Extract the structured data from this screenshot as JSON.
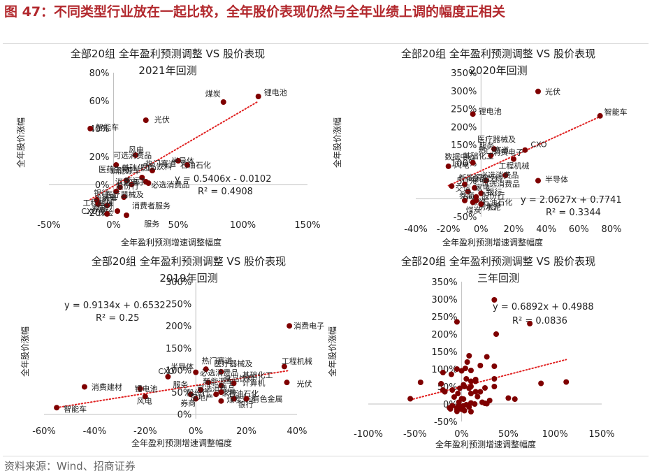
{
  "header": {
    "figure_title": "图 47：不同类型行业放在一起比较，全年股价表现仍然与全年业绩上调的幅度正相关"
  },
  "footer": {
    "source": "资料来源：Wind、招商证券"
  },
  "colors": {
    "point": "#7f0000",
    "trendline": "#e02020",
    "title": "#b2282d",
    "text": "#222222"
  },
  "chart_data": [
    {
      "type": "scatter",
      "title": "全部20组 全年盈利预测调整 VS 股价表现",
      "subtitle": "2021年回测",
      "xlabel": "全年盈利预测增速调整幅度",
      "ylabel": "全年股价涨幅",
      "xlim": [
        -0.5,
        1.5
      ],
      "ylim": [
        -0.2,
        0.8
      ],
      "xticks": [
        -0.5,
        0,
        0.5,
        1,
        1.5
      ],
      "xtick_labels": [
        "-50%",
        "0%",
        "50%",
        "100%",
        "150%"
      ],
      "yticks": [
        -0.2,
        0,
        0.2,
        0.4,
        0.6,
        0.8
      ],
      "ytick_labels": [
        "-20%",
        "0%",
        "20%",
        "40%",
        "60%",
        "80%"
      ],
      "grid": false,
      "trendline": {
        "slope": 0.5406,
        "intercept": -0.0102,
        "style": "dotted"
      },
      "equation": "y = 0.5406x - 0.0102",
      "r2": "R² = 0.4908",
      "points": [
        {
          "x": 1.12,
          "y": 0.63,
          "label": "锂电池"
        },
        {
          "x": 0.85,
          "y": 0.59,
          "label": "煤炭"
        },
        {
          "x": 0.25,
          "y": 0.46,
          "label": "光伏"
        },
        {
          "x": -0.18,
          "y": 0.4,
          "label": "智能车"
        },
        {
          "x": 0.17,
          "y": 0.21,
          "label": "风电"
        },
        {
          "x": 0.5,
          "y": 0.17,
          "label": "半导体"
        },
        {
          "x": 0.57,
          "y": 0.14,
          "label": "石油石化"
        },
        {
          "x": 0.02,
          "y": 0.14,
          "label": "基础化工"
        },
        {
          "x": 0.3,
          "y": 0.1,
          "label": "热门赛道"
        },
        {
          "x": 0.22,
          "y": 0.05,
          "label": "新能源车"
        },
        {
          "x": 0.1,
          "y": 0.03,
          "label": "医药生物"
        },
        {
          "x": 0.25,
          "y": 0.02,
          "label": "消费电子"
        },
        {
          "x": 0.14,
          "y": 0.0,
          "label": "交运"
        },
        {
          "x": 0.27,
          "y": 0.01,
          "label": "必选消费品"
        },
        {
          "x": 0.05,
          "y": -0.02,
          "label": "股份行"
        },
        {
          "x": 0.02,
          "y": -0.05,
          "label": "银行"
        },
        {
          "x": 0.08,
          "y": -0.09,
          "label": "房地产"
        },
        {
          "x": -0.13,
          "y": -0.11,
          "label": "工程机械"
        },
        {
          "x": -0.12,
          "y": -0.14,
          "label": "CXO"
        },
        {
          "x": -0.05,
          "y": -0.15,
          "label": "建材"
        },
        {
          "x": 0.03,
          "y": -0.19,
          "label": "保险"
        },
        {
          "x": 0.1,
          "y": -0.22,
          "label": "消费者服务"
        },
        {
          "x": -0.05,
          "y": -0.21,
          "label": "券商"
        }
      ],
      "extra_labels": [
        {
          "text": "可选消费品"
        },
        {
          "text": "食品饮料"
        },
        {
          "text": "家电"
        },
        {
          "text": "医疗器械及"
        },
        {
          "text": "服务"
        }
      ]
    },
    {
      "type": "scatter",
      "title": "全部20组 全年盈利预测调整 VS 股价表现",
      "subtitle": "2020年回测",
      "xlabel": "全年盈利预测增速调整幅度",
      "ylabel": "全年股价涨幅",
      "xlim": [
        -0.4,
        0.8
      ],
      "ylim": [
        -0.5,
        3.5
      ],
      "xticks": [
        -0.4,
        -0.2,
        0,
        0.2,
        0.4,
        0.6,
        0.8
      ],
      "xtick_labels": [
        "-40%",
        "-20%",
        "0%",
        "20%",
        "40%",
        "60%",
        "80%"
      ],
      "yticks": [
        -0.5,
        0,
        0.5,
        1,
        1.5,
        2,
        2.5,
        3,
        3.5
      ],
      "ytick_labels": [
        "-50%",
        "0%",
        "50%",
        "100%",
        "150%",
        "200%",
        "250%",
        "300%",
        "350%"
      ],
      "grid": false,
      "trendline": {
        "slope": 2.0627,
        "intercept": 0.7741,
        "style": "dotted"
      },
      "equation": "y = 2.0627x + 0.7741",
      "r2": "R² = 0.3344",
      "points": [
        {
          "x": 0.35,
          "y": 2.98,
          "label": "光伏"
        },
        {
          "x": 0.73,
          "y": 2.3,
          "label": "智能车"
        },
        {
          "x": -0.05,
          "y": 2.35,
          "label": "锂电池"
        },
        {
          "x": 0.08,
          "y": 1.38,
          "label": "医疗器械及"
        },
        {
          "x": 0.06,
          "y": 1.2,
          "label": "热门赛道"
        },
        {
          "x": 0.27,
          "y": 1.35,
          "label": "CXO"
        },
        {
          "x": 0.2,
          "y": 1.1,
          "label": "消费电子"
        },
        {
          "x": -0.05,
          "y": 1.0,
          "label": "基础化工"
        },
        {
          "x": -0.2,
          "y": 0.9,
          "label": "风电"
        },
        {
          "x": 0.15,
          "y": 0.65,
          "label": "工程机械"
        },
        {
          "x": 0.35,
          "y": 0.5,
          "label": "半导体"
        },
        {
          "x": 0.03,
          "y": 0.5,
          "label": "必选消费品"
        },
        {
          "x": -0.1,
          "y": 0.4,
          "label": "食品饮料"
        },
        {
          "x": -0.18,
          "y": 0.35,
          "label": "新能源车"
        },
        {
          "x": -0.04,
          "y": 0.3,
          "label": "可选消费品"
        },
        {
          "x": -0.08,
          "y": 0.2,
          "label": "家电"
        },
        {
          "x": 0.0,
          "y": 0.15,
          "label": "银行"
        },
        {
          "x": -0.03,
          "y": 0.05,
          "label": "股份行"
        },
        {
          "x": -0.1,
          "y": -0.05,
          "label": "保险"
        },
        {
          "x": -0.03,
          "y": -0.05,
          "label": "石油石化"
        },
        {
          "x": -0.05,
          "y": -0.1,
          "label": "房地产"
        },
        {
          "x": 0.0,
          "y": -0.15,
          "label": "水泥"
        }
      ],
      "extra_labels": [
        {
          "text": "数据中心"
        },
        {
          "text": "服务"
        },
        {
          "text": "交运"
        },
        {
          "text": "券商"
        },
        {
          "text": "煤炭"
        }
      ]
    },
    {
      "type": "scatter",
      "title": "全部20组 全年盈利预测调整 VS 股价表现",
      "subtitle": "2019年回测",
      "xlabel": "全年盈利预测增速调整幅度",
      "ylabel": "全年股价涨幅",
      "xlim": [
        -0.6,
        0.4
      ],
      "ylim": [
        -0.1,
        3.0
      ],
      "xticks": [
        -0.6,
        -0.4,
        -0.2,
        0,
        0.2,
        0.4
      ],
      "xtick_labels": [
        "-60%",
        "-40%",
        "-20%",
        "0%",
        "20%",
        "40%"
      ],
      "yticks": [
        0,
        0.5,
        1,
        1.5,
        2,
        2.5,
        3
      ],
      "ytick_labels": [
        "0%",
        "50%",
        "100%",
        "150%",
        "200%",
        "250%",
        "300%"
      ],
      "grid": false,
      "trendline": {
        "slope": 0.9134,
        "intercept": 0.6532,
        "style": "dotted"
      },
      "equation": "y = 0.9134x + 0.6532",
      "r2": "R² = 0.25",
      "points": [
        {
          "x": 0.37,
          "y": 2.0,
          "label": "消费电子"
        },
        {
          "x": 0.35,
          "y": 1.08,
          "label": "工程机械"
        },
        {
          "x": 0.36,
          "y": 0.72,
          "label": "光伏"
        },
        {
          "x": 0.04,
          "y": 1.02,
          "label": "热门赛道"
        },
        {
          "x": 0.1,
          "y": 0.96,
          "label": "医疗器械及"
        },
        {
          "x": 0.0,
          "y": 0.95,
          "label": "半导体"
        },
        {
          "x": -0.11,
          "y": 0.85,
          "label": "CXO"
        },
        {
          "x": -0.44,
          "y": 0.62,
          "label": "消费建材"
        },
        {
          "x": -0.22,
          "y": 0.58,
          "label": "锂电池"
        },
        {
          "x": -0.2,
          "y": 0.4,
          "label": "风电"
        },
        {
          "x": 0.05,
          "y": 0.72,
          "label": "必选消费品"
        },
        {
          "x": 0.1,
          "y": 0.65,
          "label": "食品饮料"
        },
        {
          "x": 0.15,
          "y": 0.7,
          "label": "基础化工"
        },
        {
          "x": 0.02,
          "y": 0.55,
          "label": "可选消费品"
        },
        {
          "x": 0.08,
          "y": 0.45,
          "label": "家电"
        },
        {
          "x": 0.1,
          "y": 0.5,
          "label": "石油石化"
        },
        {
          "x": 0.15,
          "y": 0.35,
          "label": "交运"
        },
        {
          "x": -0.02,
          "y": 0.45,
          "label": "股份行"
        },
        {
          "x": 0.0,
          "y": 0.35,
          "label": "房地产"
        },
        {
          "x": 0.1,
          "y": 0.3,
          "label": "煤炭"
        },
        {
          "x": 0.2,
          "y": 0.35,
          "label": "有色金属"
        },
        {
          "x": -0.55,
          "y": 0.15,
          "label": "智能车"
        }
      ],
      "extra_labels": [
        {
          "text": "服务"
        },
        {
          "text": "新能源车"
        },
        {
          "text": "券商"
        },
        {
          "text": "计算机"
        },
        {
          "text": "银行"
        }
      ]
    },
    {
      "type": "scatter",
      "title": "全部20组 全年盈利预测调整 VS 股价表现",
      "subtitle": "三年回测",
      "xlabel": "全年盈利预测增速调整幅度",
      "ylabel": "全年股价涨幅",
      "xlim": [
        -1.0,
        1.5
      ],
      "ylim": [
        -0.5,
        3.5
      ],
      "xticks": [
        -1.0,
        -0.5,
        0,
        0.5,
        1.0,
        1.5
      ],
      "xtick_labels": [
        "-100%",
        "-50%",
        "0%",
        "50%",
        "100%",
        "150%"
      ],
      "yticks": [
        -0.5,
        0,
        0.5,
        1,
        1.5,
        2,
        2.5,
        3,
        3.5
      ],
      "ytick_labels": [
        "-50%",
        "0%",
        "50%",
        "100%",
        "150%",
        "200%",
        "250%",
        "300%",
        "350%"
      ],
      "grid": false,
      "trendline": {
        "slope": 0.6892,
        "intercept": 0.4988,
        "style": "dotted"
      },
      "equation": "y = 0.6892x + 0.4988",
      "r2": "R² = 0.0836",
      "points": [
        {
          "x": 0.35,
          "y": 2.98
        },
        {
          "x": 0.73,
          "y": 2.3
        },
        {
          "x": -0.05,
          "y": 2.35
        },
        {
          "x": 0.37,
          "y": 2.0
        },
        {
          "x": 1.12,
          "y": 0.63
        },
        {
          "x": 0.85,
          "y": 0.59
        },
        {
          "x": -0.55,
          "y": 0.15
        },
        {
          "x": -0.44,
          "y": 0.62
        },
        {
          "x": 0.5,
          "y": 0.17
        },
        {
          "x": 0.57,
          "y": 0.14
        },
        {
          "x": 0.35,
          "y": 0.72
        },
        {
          "x": 0.35,
          "y": 1.08
        },
        {
          "x": 0.35,
          "y": 0.5
        },
        {
          "x": 0.25,
          "y": 0.46
        },
        {
          "x": 0.17,
          "y": 0.21
        },
        {
          "x": 0.08,
          "y": 1.38
        },
        {
          "x": 0.06,
          "y": 1.2
        },
        {
          "x": 0.27,
          "y": 1.35
        },
        {
          "x": 0.2,
          "y": 1.1
        },
        {
          "x": -0.05,
          "y": 1.0
        },
        {
          "x": -0.2,
          "y": 0.9
        },
        {
          "x": 0.15,
          "y": 0.65
        },
        {
          "x": 0.03,
          "y": 0.5
        },
        {
          "x": -0.1,
          "y": 0.4
        },
        {
          "x": -0.18,
          "y": 0.35
        },
        {
          "x": -0.04,
          "y": 0.3
        },
        {
          "x": -0.08,
          "y": 0.2
        },
        {
          "x": 0.0,
          "y": 0.15
        },
        {
          "x": -0.03,
          "y": 0.05
        },
        {
          "x": -0.1,
          "y": -0.05
        },
        {
          "x": -0.03,
          "y": -0.05
        },
        {
          "x": -0.05,
          "y": -0.1
        },
        {
          "x": 0.0,
          "y": -0.15
        },
        {
          "x": 0.04,
          "y": 1.02
        },
        {
          "x": 0.1,
          "y": 0.96
        },
        {
          "x": 0.0,
          "y": 0.95
        },
        {
          "x": -0.11,
          "y": 0.85
        },
        {
          "x": -0.22,
          "y": 0.58
        },
        {
          "x": -0.2,
          "y": 0.4
        },
        {
          "x": 0.05,
          "y": 0.72
        },
        {
          "x": 0.1,
          "y": 0.65
        },
        {
          "x": 0.15,
          "y": 0.7
        },
        {
          "x": 0.02,
          "y": 0.55
        },
        {
          "x": 0.08,
          "y": 0.45
        },
        {
          "x": 0.1,
          "y": 0.5
        },
        {
          "x": 0.15,
          "y": 0.35
        },
        {
          "x": -0.02,
          "y": 0.45
        },
        {
          "x": 0.1,
          "y": 0.3
        },
        {
          "x": 0.2,
          "y": 0.35
        },
        {
          "x": 0.02,
          "y": 0.14
        },
        {
          "x": 0.3,
          "y": 0.1
        },
        {
          "x": 0.22,
          "y": 0.05
        },
        {
          "x": 0.1,
          "y": 0.03
        },
        {
          "x": 0.25,
          "y": 0.02
        },
        {
          "x": 0.14,
          "y": 0.0
        },
        {
          "x": 0.27,
          "y": 0.01
        },
        {
          "x": 0.05,
          "y": -0.02
        },
        {
          "x": 0.02,
          "y": -0.05
        },
        {
          "x": 0.08,
          "y": -0.09
        },
        {
          "x": -0.13,
          "y": -0.11
        },
        {
          "x": -0.12,
          "y": -0.14
        },
        {
          "x": -0.05,
          "y": -0.15
        },
        {
          "x": 0.03,
          "y": -0.19
        },
        {
          "x": 0.1,
          "y": -0.22
        },
        {
          "x": -0.05,
          "y": -0.21
        }
      ]
    }
  ]
}
